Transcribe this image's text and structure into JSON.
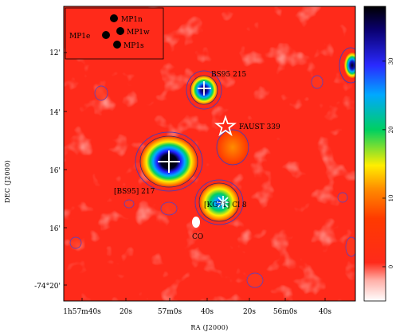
{
  "chart_data": {
    "type": "heatmap",
    "xlabel": "RA (J2000)",
    "ylabel": "DEC (J2000)",
    "x_ticks": [
      "1h57m40s",
      "20s",
      "57m0s",
      "40s",
      "20s",
      "56m0s",
      "40s"
    ],
    "y_ticks": [
      "12'",
      "14'",
      "16'",
      "16'",
      "-74°20'"
    ],
    "colorbar": {
      "ticks": [
        0,
        10,
        20,
        30
      ],
      "range": [
        -5,
        38
      ],
      "colors": [
        "#ffffff",
        "#ff2a1a",
        "#ff3a00",
        "#ff8c00",
        "#ffee00",
        "#00d060",
        "#00a8ff",
        "#2a2aff",
        "#0a0070",
        "#000000"
      ]
    },
    "legend": {
      "placement": "top-left",
      "entries": [
        "MP1n",
        "MP1e",
        "MP1w",
        "MP1s"
      ]
    },
    "annotations": {
      "bs95_215": "BS95 215",
      "faust_339": "FAUST 339",
      "bs95_217": "[BS95] 217",
      "kg71": "[KG71] Cl 8",
      "co": "CO"
    }
  }
}
